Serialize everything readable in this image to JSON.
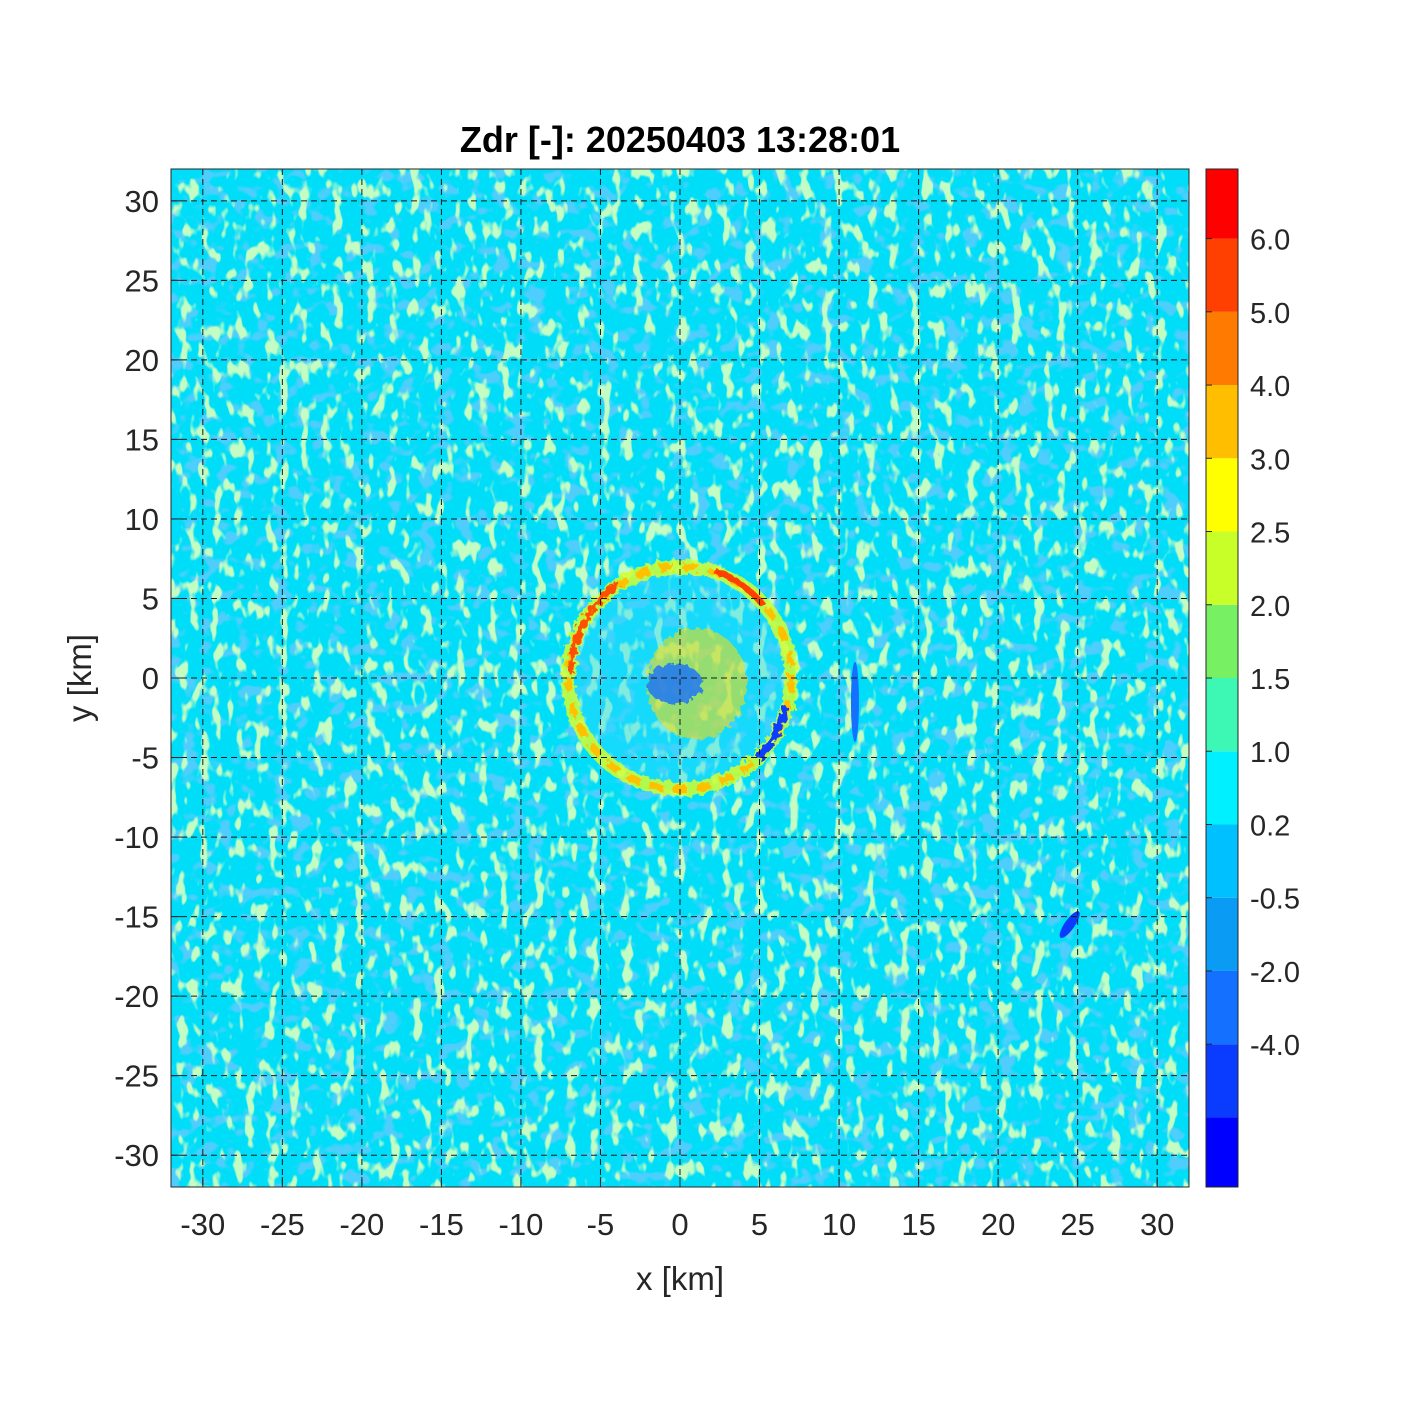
{
  "chart_data": {
    "type": "heatmap",
    "title": "Zdr [-]: 20250403 13:28:01",
    "xlabel": "x [km]",
    "ylabel": "y [km]",
    "xlim": [
      -32,
      32
    ],
    "ylim": [
      -32,
      32
    ],
    "x_ticks": [
      "-30",
      "-25",
      "-20",
      "-15",
      "-10",
      "-5",
      "0",
      "5",
      "10",
      "15",
      "20",
      "25",
      "30"
    ],
    "y_ticks": [
      "30",
      "25",
      "20",
      "15",
      "10",
      "5",
      "0",
      "-5",
      "-10",
      "-15",
      "-20",
      "-25",
      "-30"
    ],
    "grid": true,
    "grid_style": "dashed",
    "colormap": "jet",
    "colorbar": {
      "position": "right",
      "levels": 13,
      "tick_labels": [
        "6.0",
        "5.0",
        "4.0",
        "3.0",
        "2.5",
        "2.0",
        "1.5",
        "1.0",
        "0.2",
        "-0.5",
        "-2.0",
        "-4.0"
      ],
      "colors": [
        "#0000ff",
        "#0a3cff",
        "#1470ff",
        "#0a9cf5",
        "#00c0ff",
        "#00f0ff",
        "#3cf8b4",
        "#78f064",
        "#c8ff28",
        "#ffff00",
        "#ffbe00",
        "#ff7a00",
        "#ff4000",
        "#ff0000"
      ]
    },
    "features": {
      "background_value": "0.2 to 1.0",
      "ring_radius_km": 7,
      "ring_values": "2.5 to 5.0",
      "center_values": "2.0 to 3.0"
    }
  }
}
